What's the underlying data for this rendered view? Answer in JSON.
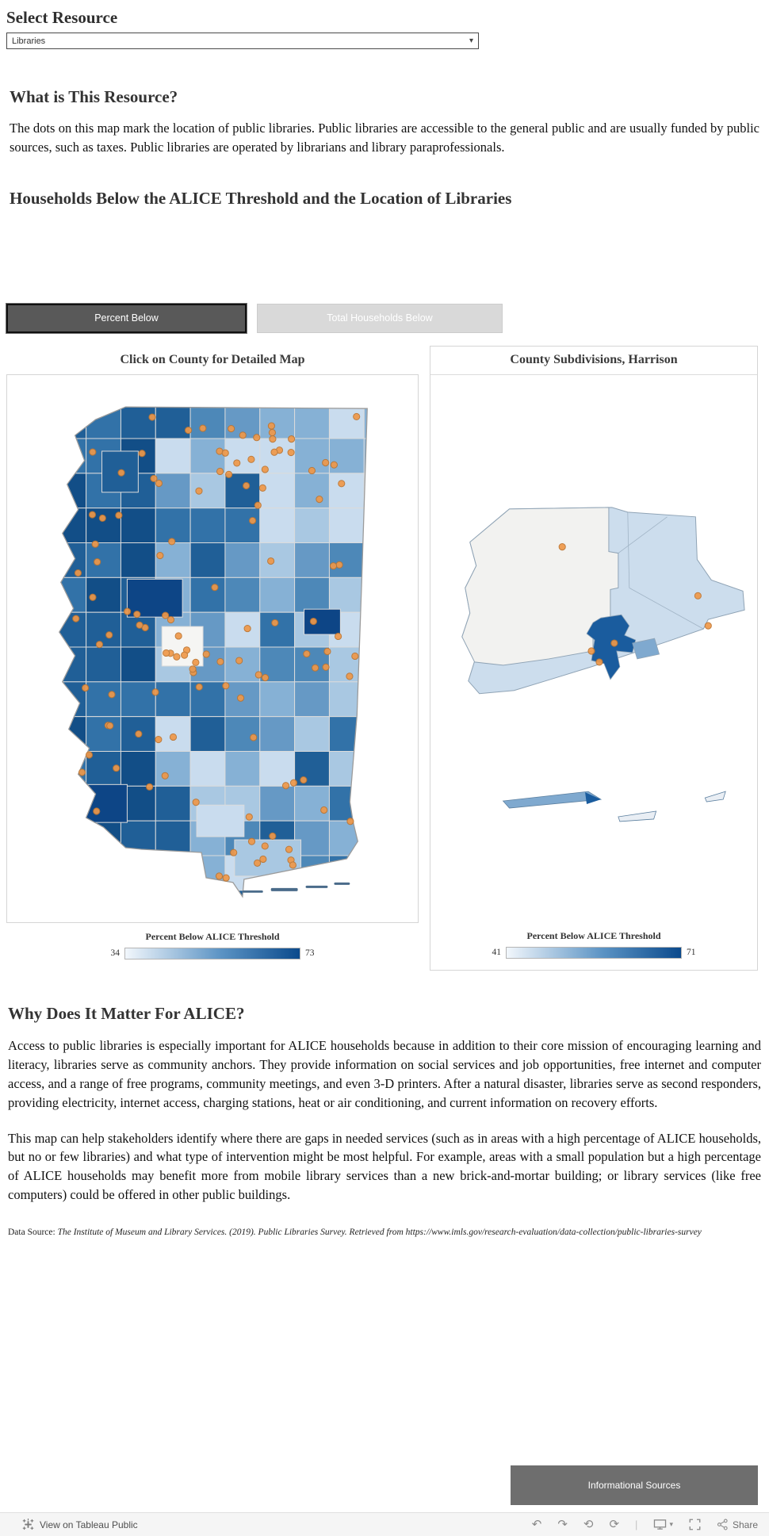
{
  "resource": {
    "label": "Select Resource",
    "value": "Libraries"
  },
  "what_is": {
    "title": "What is This Resource?",
    "body": "The dots on this map mark the location of public libraries. Public libraries are accessible to the general public and are usually funded by public sources, such as taxes. Public libraries are operated by librarians and library paraprofessionals."
  },
  "map_section": {
    "title": "Households Below the ALICE Threshold and the Location of Libraries",
    "buttons": {
      "percent_below": "Percent Below",
      "total_households": "Total Households Below"
    },
    "left_map": {
      "title": "Click on County for Detailed Map",
      "legend_title": "Percent Below ALICE Threshold",
      "legend_min": "34",
      "legend_max": "73"
    },
    "right_map": {
      "title": "County Subdivisions, Harrison",
      "legend_title": "Percent Below ALICE Threshold",
      "legend_min": "41",
      "legend_max": "71"
    }
  },
  "why": {
    "title": "Why Does It Matter For ALICE?",
    "para1": "Access to public libraries is especially important for ALICE households because in addition to their core mission of encouraging learning and literacy, libraries serve as community anchors. They provide information on social services and job opportunities, free internet and computer access, and a range of free programs, community meetings, and even 3-D printers. After a natural disaster, libraries serve as second responders, providing electricity, internet access, charging stations, heat or air conditioning, and current information on recovery efforts.",
    "para2": "This map can help stakeholders identify where there are gaps in needed services (such as in areas with a high percentage of ALICE households, but no or few libraries) and what type of intervention might be most helpful. For example, areas with a small population but a high percentage of ALICE households may benefit more from mobile library services than a new brick-and-mortar building; or library services (like free computers) could be offered in other public buildings.",
    "source_prefix": "Data Source: ",
    "source": "The Institute of Museum and Library Services. (2019). Public Libraries Survey. Retrieved from https://www.imls.gov/research-evaluation/data-collection/public-libraries-survey"
  },
  "footer": {
    "info_button": "Informational Sources"
  },
  "toolbar": {
    "view_on": "View on Tableau Public",
    "share": "Share",
    "undo_glyph": "↶",
    "redo_glyph": "↷",
    "revert_glyph": "⟲",
    "refresh_glyph": "⟳"
  },
  "colors": {
    "county_palette": [
      "#e8eff7",
      "#c9dcee",
      "#a9c8e2",
      "#86b1d5",
      "#6699c5",
      "#4d88b8",
      "#3272a8",
      "#205f97",
      "#124e87"
    ],
    "county_white": "#f5f5f3",
    "dark_navy": "#0d4586",
    "county_border": "#dbdbdb",
    "state_border": "#9b9b9b",
    "dot_fill": "#ef9849",
    "dot_stroke": "#bc7430",
    "subdiv_pale": "#f2f2f0",
    "subdiv_light": "#ccdded",
    "subdiv_mid": "#7fa9cf",
    "subdiv_dark": "#1a5c9e",
    "subdiv_border": "#8fa3b5",
    "legend_start": "#f2f7fc",
    "legend_mid": "#5b93c4",
    "legend_end": "#0b4a8c",
    "barrier_island": "#4a6b8a"
  }
}
